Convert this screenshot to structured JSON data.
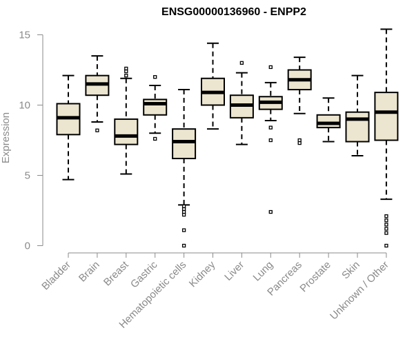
{
  "chart_data": {
    "type": "boxplot",
    "title": "ENSG00000136960 - ENPP2",
    "ylabel": "Expression",
    "xlabel": "",
    "ylim": [
      0,
      15
    ],
    "yticks": [
      0,
      5,
      10,
      15
    ],
    "grid": false,
    "legend": "none",
    "colors": {
      "box_fill": "#ece5cf",
      "box_stroke": "#000000",
      "median": "#000000",
      "axis": "#8a8a8a",
      "text": "#8a8a8a",
      "title": "#000000"
    },
    "categories": [
      "Bladder",
      "Brain",
      "Breast",
      "Gastric",
      "Hematopoietic cells",
      "Kidney",
      "Liver",
      "Lung",
      "Pancreas",
      "Prostate",
      "Skin",
      "Unknown / Other"
    ],
    "boxes": [
      {
        "category": "Bladder",
        "whisker_low": 4.7,
        "q1": 7.9,
        "median": 9.1,
        "q3": 10.1,
        "whisker_high": 12.1,
        "outliers": []
      },
      {
        "category": "Brain",
        "whisker_low": 8.8,
        "q1": 10.7,
        "median": 11.5,
        "q3": 12.1,
        "whisker_high": 13.5,
        "outliers": [
          8.2
        ]
      },
      {
        "category": "Breast",
        "whisker_low": 5.1,
        "q1": 7.2,
        "median": 7.8,
        "q3": 9.0,
        "whisker_high": 11.9,
        "outliers": [
          12.6,
          12.4,
          12.1
        ]
      },
      {
        "category": "Gastric",
        "whisker_low": 8.0,
        "q1": 9.3,
        "median": 10.1,
        "q3": 10.4,
        "whisker_high": 11.4,
        "outliers": [
          12.0,
          7.6
        ]
      },
      {
        "category": "Hematopoietic cells",
        "whisker_low": 2.9,
        "q1": 6.2,
        "median": 7.4,
        "q3": 8.3,
        "whisker_high": 11.1,
        "outliers": [
          2.8,
          2.6,
          2.4,
          2.2,
          1.1,
          0.0
        ]
      },
      {
        "category": "Kidney",
        "whisker_low": 8.3,
        "q1": 10.0,
        "median": 10.9,
        "q3": 11.9,
        "whisker_high": 14.4,
        "outliers": []
      },
      {
        "category": "Liver",
        "whisker_low": 7.2,
        "q1": 9.1,
        "median": 10.0,
        "q3": 10.7,
        "whisker_high": 12.3,
        "outliers": [
          13.0
        ]
      },
      {
        "category": "Lung",
        "whisker_low": 8.9,
        "q1": 9.7,
        "median": 10.2,
        "q3": 10.6,
        "whisker_high": 11.6,
        "outliers": [
          12.7,
          8.4,
          7.5,
          2.4
        ]
      },
      {
        "category": "Pancreas",
        "whisker_low": 9.4,
        "q1": 11.1,
        "median": 11.8,
        "q3": 12.5,
        "whisker_high": 13.4,
        "outliers": [
          7.5,
          7.3
        ]
      },
      {
        "category": "Prostate",
        "whisker_low": 7.4,
        "q1": 8.4,
        "median": 8.7,
        "q3": 9.3,
        "whisker_high": 10.5,
        "outliers": []
      },
      {
        "category": "Skin",
        "whisker_low": 6.4,
        "q1": 7.4,
        "median": 9.0,
        "q3": 9.5,
        "whisker_high": 12.1,
        "outliers": []
      },
      {
        "category": "Unknown / Other",
        "whisker_low": 3.3,
        "q1": 7.5,
        "median": 9.5,
        "q3": 10.9,
        "whisker_high": 15.4,
        "outliers": [
          2.1,
          1.8,
          1.5,
          1.2,
          0.9,
          0.0
        ]
      }
    ]
  }
}
